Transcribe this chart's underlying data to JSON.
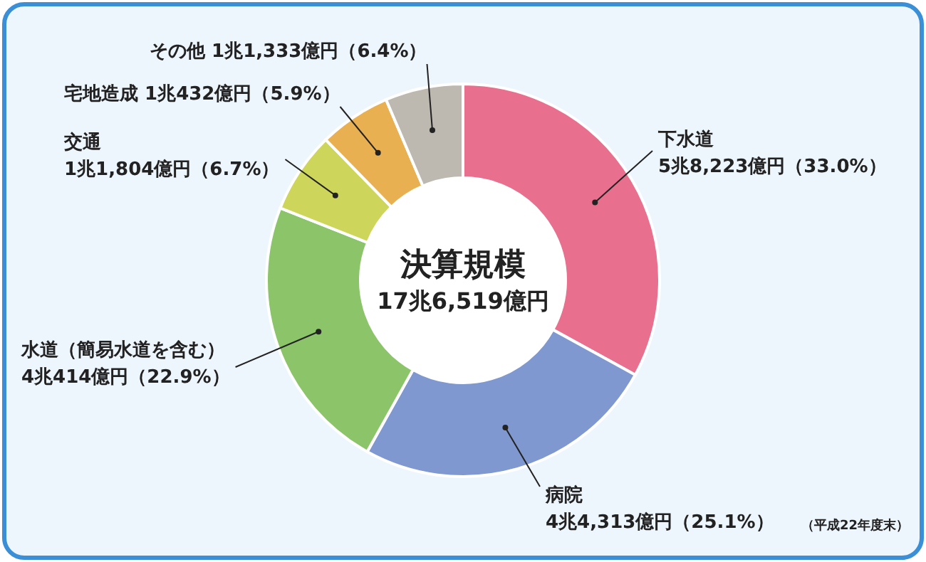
{
  "chart_data": {
    "type": "donut",
    "categories": [
      "下水道",
      "病院",
      "水道（簡易水道を含む）",
      "交通",
      "宅地造成",
      "その他"
    ],
    "values": [
      33.0,
      25.1,
      22.9,
      6.7,
      5.9,
      6.4
    ],
    "value_labels": [
      "5兆8,223億円（33.0%）",
      "4兆4,313億円（25.1%）",
      "4兆414億円（22.9%）",
      "1兆1,804億円（6.7%）",
      "1兆432億円（5.9%）",
      "1兆1,333億円（6.4%）"
    ],
    "colors": [
      "#e8708e",
      "#7f98d0",
      "#8cc46a",
      "#cdd65a",
      "#e8b050",
      "#bdb8b0"
    ],
    "annotations": [
      "決算規模",
      "17兆6,519億円",
      "（平成22年度末）"
    ]
  }
}
